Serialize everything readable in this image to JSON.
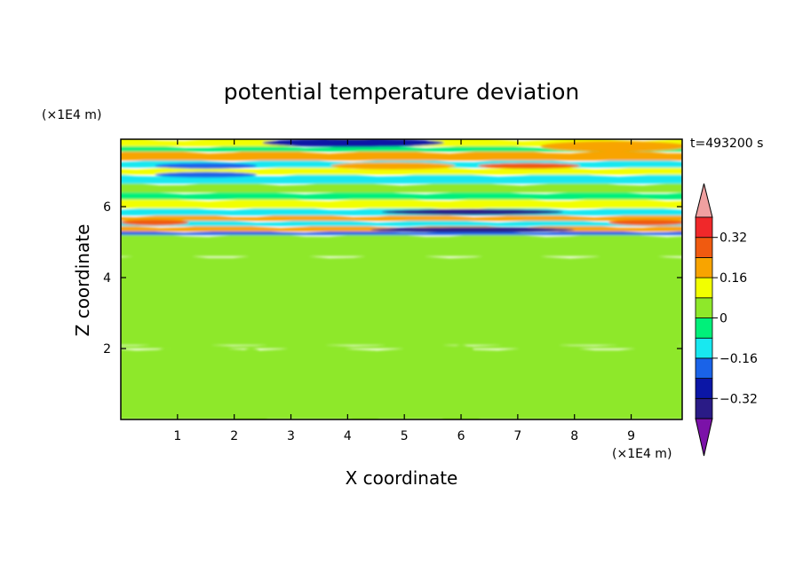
{
  "chart_data": {
    "type": "heatmap",
    "title": "potential temperature deviation",
    "xlabel": "X coordinate",
    "ylabel": "Z coordinate",
    "x_unit": "(×1E4 m)",
    "y_unit": "(×1E4 m)",
    "time_label": "t=493200 s",
    "xlim": [
      0,
      9.9
    ],
    "ylim": [
      0,
      7.9
    ],
    "xticks": [
      1,
      2,
      3,
      4,
      5,
      6,
      7,
      8,
      9
    ],
    "yticks": [
      2,
      4,
      6
    ],
    "colorbar": {
      "levels": [
        -0.4,
        -0.32,
        -0.24,
        -0.16,
        -0.08,
        0,
        0.08,
        0.16,
        0.24,
        0.32,
        0.4
      ],
      "labeled_ticks": [
        0.32,
        0.16,
        0,
        -0.16,
        -0.32
      ],
      "colors": [
        "#7b12a8",
        "#2a1b86",
        "#0b16a6",
        "#1a63e8",
        "#18e8f0",
        "#00f07a",
        "#8ee82a",
        "#f2ff00",
        "#f8a400",
        "#f05a10",
        "#f0282a",
        "#f0a0a0"
      ]
    },
    "bands": [
      {
        "z0": 0.0,
        "z1": 2.0,
        "value": 0.0
      },
      {
        "z0": 2.0,
        "z1": 2.1,
        "value": 0.05
      },
      {
        "z0": 2.1,
        "z1": 4.6,
        "value": 0.04
      },
      {
        "z0": 4.6,
        "z1": 5.2,
        "value": 0.05
      },
      {
        "z0": 5.2,
        "z1": 5.3,
        "value": -0.18
      },
      {
        "z0": 5.3,
        "z1": 5.45,
        "value": 0.22
      },
      {
        "z0": 5.45,
        "z1": 5.6,
        "value": -0.14
      },
      {
        "z0": 5.6,
        "z1": 5.75,
        "value": 0.18
      },
      {
        "z0": 5.75,
        "z1": 5.95,
        "value": -0.1
      },
      {
        "z0": 5.95,
        "z1": 6.2,
        "value": 0.1
      },
      {
        "z0": 6.2,
        "z1": 6.4,
        "value": -0.06
      },
      {
        "z0": 6.4,
        "z1": 6.65,
        "value": 0.06
      },
      {
        "z0": 6.65,
        "z1": 6.9,
        "value": -0.1
      },
      {
        "z0": 6.9,
        "z1": 7.1,
        "value": 0.14
      },
      {
        "z0": 7.1,
        "z1": 7.3,
        "value": -0.12
      },
      {
        "z0": 7.3,
        "z1": 7.55,
        "value": 0.2
      },
      {
        "z0": 7.55,
        "z1": 7.7,
        "value": -0.05
      },
      {
        "z0": 7.7,
        "z1": 7.9,
        "value": 0.12
      }
    ],
    "features": [
      {
        "x": 0.8,
        "z": 1.1,
        "rx": 0.55,
        "rz": 0.9,
        "value": 0.05
      },
      {
        "x": 2.3,
        "z": 0.9,
        "rx": 0.5,
        "rz": 1.1,
        "value": 0.05
      },
      {
        "x": 4.3,
        "z": 0.9,
        "rx": 0.6,
        "rz": 1.0,
        "value": 0.05
      },
      {
        "x": 6.0,
        "z": 0.9,
        "rx": 0.5,
        "rz": 1.2,
        "value": 0.05
      },
      {
        "x": 8.2,
        "z": 1.0,
        "rx": 0.5,
        "rz": 0.9,
        "value": 0.05
      },
      {
        "x": 9.1,
        "z": 0.7,
        "rx": 0.5,
        "rz": 0.4,
        "value": 0.05
      },
      {
        "x": 4.1,
        "z": 7.8,
        "rx": 1.6,
        "rz": 0.12,
        "value": -0.3
      },
      {
        "x": 1.5,
        "z": 7.15,
        "rx": 0.9,
        "rz": 0.08,
        "value": -0.2
      },
      {
        "x": 1.5,
        "z": 6.9,
        "rx": 0.9,
        "rz": 0.08,
        "value": -0.2
      },
      {
        "x": 4.8,
        "z": 7.15,
        "rx": 1.1,
        "rz": 0.1,
        "value": 0.22
      },
      {
        "x": 8.7,
        "z": 7.7,
        "rx": 1.3,
        "rz": 0.15,
        "value": 0.22
      },
      {
        "x": 6.2,
        "z": 5.85,
        "rx": 1.6,
        "rz": 0.08,
        "value": -0.34
      },
      {
        "x": 6.2,
        "z": 5.35,
        "rx": 1.8,
        "rz": 0.07,
        "value": -0.34
      },
      {
        "x": 0.6,
        "z": 5.55,
        "rx": 0.6,
        "rz": 0.08,
        "value": 0.3
      },
      {
        "x": 9.3,
        "z": 5.55,
        "rx": 0.7,
        "rz": 0.08,
        "value": 0.25
      },
      {
        "x": 7.2,
        "z": 7.15,
        "rx": 0.9,
        "rz": 0.08,
        "value": 0.3
      }
    ]
  }
}
